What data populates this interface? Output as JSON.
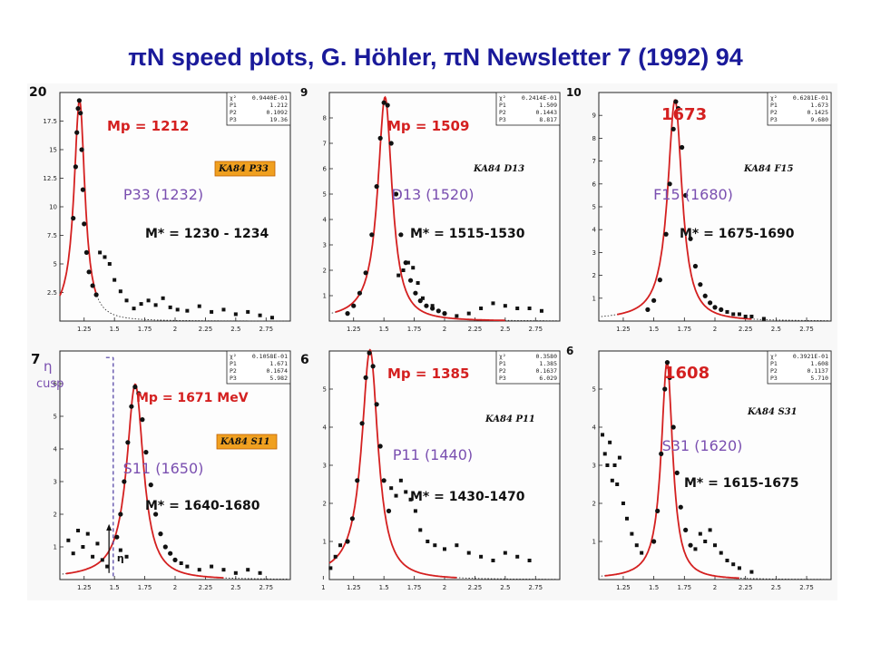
{
  "slide": {
    "title": "πN speed plots, G. Höhler, πN Newsletter 7 (1992) 94"
  },
  "colors": {
    "title": "#1a1a9a",
    "fit": "#d42020",
    "hand_purple": "#7a4fb0",
    "highlight": "#f0a020"
  },
  "chart_data": [
    {
      "type": "scatter",
      "wave": "P33",
      "dataset_label": "KA84 P33",
      "highlighted": true,
      "resonance_label": "P33 (1232)",
      "mass_label": "Mp = 1212",
      "range_label": "M* = 1230 - 1234",
      "ymax_label": "20",
      "xlim": [
        1.05,
        2.95
      ],
      "ylim": [
        0,
        20
      ],
      "xticks": [
        "1.25",
        "1.5",
        "1.75",
        "2",
        "2.25",
        "2.5",
        "2.75"
      ],
      "yticks": [
        "2.5",
        "5",
        "7.5",
        "10",
        "12.5",
        "15",
        "17.5"
      ],
      "stats": [
        [
          "χ²",
          "0.9440E-01"
        ],
        [
          "P1",
          "1.212"
        ],
        [
          "P2",
          "0.1092"
        ],
        [
          "P3",
          "19.36"
        ]
      ],
      "fit": {
        "center": 1.212,
        "width": 0.1092,
        "peak": 19.36
      },
      "fit_x": [
        1.05,
        1.35
      ],
      "points": [
        [
          1.16,
          9.0
        ],
        [
          1.18,
          13.5
        ],
        [
          1.19,
          16.5
        ],
        [
          1.2,
          18.6
        ],
        [
          1.21,
          19.3
        ],
        [
          1.22,
          18.2
        ],
        [
          1.23,
          15.0
        ],
        [
          1.24,
          11.5
        ],
        [
          1.25,
          8.5
        ],
        [
          1.27,
          6.0
        ],
        [
          1.29,
          4.3
        ],
        [
          1.32,
          3.1
        ],
        [
          1.35,
          2.3
        ]
      ],
      "tail_points": [
        [
          1.38,
          6.0
        ],
        [
          1.42,
          5.6
        ],
        [
          1.46,
          5.0
        ],
        [
          1.5,
          3.6
        ],
        [
          1.55,
          2.6
        ],
        [
          1.6,
          1.8
        ],
        [
          1.66,
          1.1
        ],
        [
          1.72,
          1.5
        ],
        [
          1.78,
          1.8
        ],
        [
          1.84,
          1.4
        ],
        [
          1.9,
          2.0
        ],
        [
          1.96,
          1.2
        ],
        [
          2.02,
          1.0
        ],
        [
          2.1,
          0.9
        ],
        [
          2.2,
          1.3
        ],
        [
          2.3,
          0.8
        ],
        [
          2.4,
          1.0
        ],
        [
          2.5,
          0.6
        ],
        [
          2.6,
          0.8
        ],
        [
          2.7,
          0.5
        ],
        [
          2.8,
          0.3
        ]
      ]
    },
    {
      "type": "scatter",
      "wave": "D13",
      "dataset_label": "KA84 D13",
      "highlighted": false,
      "resonance_label": "D13 (1520)",
      "mass_label": "Mp = 1509",
      "range_label": "M* = 1515-1530",
      "ymax_label": "9",
      "xlim": [
        1.05,
        2.95
      ],
      "ylim": [
        0,
        9
      ],
      "xticks": [
        "1.25",
        "1.5",
        "1.75",
        "2",
        "2.25",
        "2.5",
        "2.75"
      ],
      "yticks": [
        "1",
        "2",
        "3",
        "4",
        "5",
        "6",
        "7",
        "8"
      ],
      "stats": [
        [
          "χ²",
          "0.2414E-01"
        ],
        [
          "P1",
          "1.509"
        ],
        [
          "P2",
          "0.1443"
        ],
        [
          "P3",
          "8.817"
        ]
      ],
      "fit": {
        "center": 1.509,
        "width": 0.1443,
        "peak": 8.817
      },
      "fit_x": [
        1.1,
        2.5
      ],
      "points": [
        [
          1.2,
          0.3
        ],
        [
          1.25,
          0.6
        ],
        [
          1.3,
          1.1
        ],
        [
          1.35,
          1.9
        ],
        [
          1.4,
          3.4
        ],
        [
          1.44,
          5.3
        ],
        [
          1.47,
          7.2
        ],
        [
          1.5,
          8.6
        ],
        [
          1.53,
          8.5
        ],
        [
          1.56,
          7.0
        ],
        [
          1.6,
          5.0
        ],
        [
          1.64,
          3.4
        ],
        [
          1.68,
          2.3
        ],
        [
          1.72,
          1.6
        ],
        [
          1.76,
          1.1
        ],
        [
          1.8,
          0.8
        ],
        [
          1.85,
          0.6
        ],
        [
          1.9,
          0.5
        ],
        [
          1.95,
          0.4
        ],
        [
          2.0,
          0.3
        ]
      ],
      "tail_points": [
        [
          1.62,
          1.8
        ],
        [
          1.66,
          2.0
        ],
        [
          1.7,
          2.3
        ],
        [
          1.74,
          2.1
        ],
        [
          1.78,
          1.5
        ],
        [
          1.82,
          0.9
        ],
        [
          1.9,
          0.6
        ],
        [
          2.0,
          0.3
        ],
        [
          2.1,
          0.2
        ],
        [
          2.2,
          0.3
        ],
        [
          2.3,
          0.5
        ],
        [
          2.4,
          0.7
        ],
        [
          2.5,
          0.6
        ],
        [
          2.6,
          0.5
        ],
        [
          2.7,
          0.5
        ],
        [
          2.8,
          0.4
        ]
      ]
    },
    {
      "type": "scatter",
      "wave": "F15",
      "dataset_label": "KA84 F15",
      "highlighted": false,
      "resonance_label": "F15 (1680)",
      "mass_label": "1673",
      "range_label": "M* = 1675-1690",
      "ymax_label": "10",
      "xlim": [
        1.05,
        2.95
      ],
      "ylim": [
        0,
        10
      ],
      "xticks": [
        "1.25",
        "1.5",
        "1.75",
        "2",
        "2.25",
        "2.5",
        "2.75"
      ],
      "yticks": [
        "1",
        "2",
        "3",
        "4",
        "5",
        "6",
        "7",
        "8",
        "9"
      ],
      "stats": [
        [
          "χ²",
          "0.6281E-01"
        ],
        [
          "P1",
          "1.673"
        ],
        [
          "P2",
          "0.1425"
        ],
        [
          "P3",
          "9.680"
        ]
      ],
      "fit": {
        "center": 1.673,
        "width": 0.1425,
        "peak": 9.68
      },
      "fit_x": [
        1.2,
        2.3
      ],
      "points": [
        [
          1.45,
          0.5
        ],
        [
          1.5,
          0.9
        ],
        [
          1.55,
          1.8
        ],
        [
          1.6,
          3.8
        ],
        [
          1.63,
          6.0
        ],
        [
          1.66,
          8.4
        ],
        [
          1.68,
          9.6
        ],
        [
          1.7,
          9.3
        ],
        [
          1.73,
          7.6
        ],
        [
          1.76,
          5.5
        ],
        [
          1.8,
          3.6
        ],
        [
          1.84,
          2.4
        ],
        [
          1.88,
          1.6
        ],
        [
          1.92,
          1.1
        ],
        [
          1.96,
          0.8
        ],
        [
          2.0,
          0.6
        ],
        [
          2.05,
          0.5
        ]
      ],
      "tail_points": [
        [
          2.1,
          0.4
        ],
        [
          2.15,
          0.3
        ],
        [
          2.2,
          0.3
        ],
        [
          2.25,
          0.2
        ],
        [
          2.3,
          0.2
        ],
        [
          2.4,
          0.1
        ]
      ]
    },
    {
      "type": "scatter",
      "wave": "S11",
      "dataset_label": "KA84 S11",
      "highlighted": true,
      "resonance_label": "S11 (1650)",
      "mass_label": "Mp = 1671 MeV",
      "range_label": "M* = 1640-1680",
      "cusp_label": "η cusp",
      "eta_label": "η",
      "ymax_label": "7",
      "xlim": [
        1.05,
        2.95
      ],
      "ylim": [
        0,
        7
      ],
      "xticks": [
        "1.25",
        "1.5",
        "1.75",
        "2",
        "2.25",
        "2.5",
        "2.75"
      ],
      "yticks": [
        "1",
        "2",
        "3",
        "4",
        "5",
        "6"
      ],
      "stats": [
        [
          "χ²",
          "0.1058E-01"
        ],
        [
          "P1",
          "1.671"
        ],
        [
          "P2",
          "0.1674"
        ],
        [
          "P3",
          "5.982"
        ]
      ],
      "fit": {
        "center": 1.671,
        "width": 0.1674,
        "peak": 5.982
      },
      "fit_x": [
        1.1,
        2.4
      ],
      "points": [
        [
          1.52,
          1.3
        ],
        [
          1.55,
          2.0
        ],
        [
          1.58,
          3.0
        ],
        [
          1.61,
          4.2
        ],
        [
          1.64,
          5.3
        ],
        [
          1.67,
          5.9
        ],
        [
          1.7,
          5.7
        ],
        [
          1.73,
          4.9
        ],
        [
          1.76,
          3.9
        ],
        [
          1.8,
          2.9
        ],
        [
          1.84,
          2.0
        ],
        [
          1.88,
          1.4
        ],
        [
          1.92,
          1.0
        ],
        [
          1.96,
          0.8
        ],
        [
          2.0,
          0.6
        ]
      ],
      "tail_points": [
        [
          1.12,
          1.2
        ],
        [
          1.16,
          0.8
        ],
        [
          1.2,
          1.5
        ],
        [
          1.24,
          1.0
        ],
        [
          1.28,
          1.4
        ],
        [
          1.32,
          0.7
        ],
        [
          1.36,
          1.1
        ],
        [
          1.4,
          0.6
        ],
        [
          1.44,
          0.4
        ],
        [
          1.55,
          0.9
        ],
        [
          1.6,
          0.7
        ],
        [
          2.05,
          0.5
        ],
        [
          2.1,
          0.4
        ],
        [
          2.2,
          0.3
        ],
        [
          2.3,
          0.4
        ],
        [
          2.4,
          0.3
        ],
        [
          2.5,
          0.2
        ],
        [
          2.6,
          0.3
        ],
        [
          2.7,
          0.2
        ]
      ]
    },
    {
      "type": "scatter",
      "wave": "P11",
      "dataset_label": "KA84 P11",
      "highlighted": false,
      "resonance_label": "P11 (1440)",
      "mass_label": "Mp = 1385",
      "range_label": "M* = 1430-1470",
      "ymax_label": "6",
      "xlim": [
        1.05,
        2.95
      ],
      "ylim": [
        0,
        6
      ],
      "xticks": [
        "1",
        "1.25",
        "1.5",
        "1.75",
        "2",
        "2.25",
        "2.5",
        "2.75"
      ],
      "yticks": [
        "1",
        "2",
        "3",
        "4",
        "5"
      ],
      "stats": [
        [
          "χ²",
          "0.3580"
        ],
        [
          "P1",
          "1.385"
        ],
        [
          "P2",
          "0.1637"
        ],
        [
          "P3",
          "6.029"
        ]
      ],
      "fit": {
        "center": 1.385,
        "width": 0.1637,
        "peak": 6.029
      },
      "fit_x": [
        1.05,
        2.1
      ],
      "points": [
        [
          1.2,
          1.0
        ],
        [
          1.24,
          1.6
        ],
        [
          1.28,
          2.6
        ],
        [
          1.32,
          4.1
        ],
        [
          1.35,
          5.3
        ],
        [
          1.38,
          5.95
        ],
        [
          1.41,
          5.6
        ],
        [
          1.44,
          4.6
        ],
        [
          1.47,
          3.5
        ],
        [
          1.5,
          2.6
        ],
        [
          1.54,
          1.8
        ]
      ],
      "tail_points": [
        [
          1.06,
          0.3
        ],
        [
          1.1,
          0.6
        ],
        [
          1.14,
          0.9
        ],
        [
          1.56,
          2.4
        ],
        [
          1.6,
          2.2
        ],
        [
          1.64,
          2.6
        ],
        [
          1.68,
          2.3
        ],
        [
          1.72,
          2.1
        ],
        [
          1.76,
          1.8
        ],
        [
          1.8,
          1.3
        ],
        [
          1.86,
          1.0
        ],
        [
          1.92,
          0.9
        ],
        [
          2.0,
          0.8
        ],
        [
          2.1,
          0.9
        ],
        [
          2.2,
          0.7
        ],
        [
          2.3,
          0.6
        ],
        [
          2.4,
          0.5
        ],
        [
          2.5,
          0.7
        ],
        [
          2.6,
          0.6
        ],
        [
          2.7,
          0.5
        ]
      ]
    },
    {
      "type": "scatter",
      "wave": "S31",
      "dataset_label": "KA84 S31",
      "highlighted": false,
      "resonance_label": "S31 (1620)",
      "mass_label": "1608",
      "range_label": "M* = 1615-1675",
      "ymax_label": "6",
      "xlim": [
        1.05,
        2.95
      ],
      "ylim": [
        0,
        6
      ],
      "xticks": [
        "1.25",
        "1.5",
        "1.75",
        "2",
        "2.25",
        "2.5",
        "2.75"
      ],
      "yticks": [
        "1",
        "2",
        "3",
        "4",
        "5"
      ],
      "stats": [
        [
          "χ²",
          "0.3921E-01"
        ],
        [
          "P1",
          "1.608"
        ],
        [
          "P2",
          "0.1137"
        ],
        [
          "P3",
          "5.710"
        ]
      ],
      "fit": {
        "center": 1.608,
        "width": 0.1137,
        "peak": 5.71
      },
      "fit_x": [
        1.1,
        2.2
      ],
      "points": [
        [
          1.5,
          1.0
        ],
        [
          1.53,
          1.8
        ],
        [
          1.56,
          3.3
        ],
        [
          1.59,
          5.0
        ],
        [
          1.61,
          5.7
        ],
        [
          1.63,
          5.3
        ],
        [
          1.66,
          4.0
        ],
        [
          1.69,
          2.8
        ],
        [
          1.72,
          1.9
        ],
        [
          1.76,
          1.3
        ],
        [
          1.8,
          0.9
        ]
      ],
      "tail_points": [
        [
          1.08,
          3.8
        ],
        [
          1.1,
          3.3
        ],
        [
          1.12,
          3.0
        ],
        [
          1.14,
          3.6
        ],
        [
          1.16,
          2.6
        ],
        [
          1.18,
          3.0
        ],
        [
          1.2,
          2.5
        ],
        [
          1.22,
          3.2
        ],
        [
          1.25,
          2.0
        ],
        [
          1.28,
          1.6
        ],
        [
          1.32,
          1.2
        ],
        [
          1.36,
          0.9
        ],
        [
          1.4,
          0.7
        ],
        [
          1.84,
          0.8
        ],
        [
          1.88,
          1.2
        ],
        [
          1.92,
          1.0
        ],
        [
          1.96,
          1.3
        ],
        [
          2.0,
          0.9
        ],
        [
          2.05,
          0.7
        ],
        [
          2.1,
          0.5
        ],
        [
          2.15,
          0.4
        ],
        [
          2.2,
          0.3
        ],
        [
          2.3,
          0.2
        ]
      ]
    }
  ]
}
